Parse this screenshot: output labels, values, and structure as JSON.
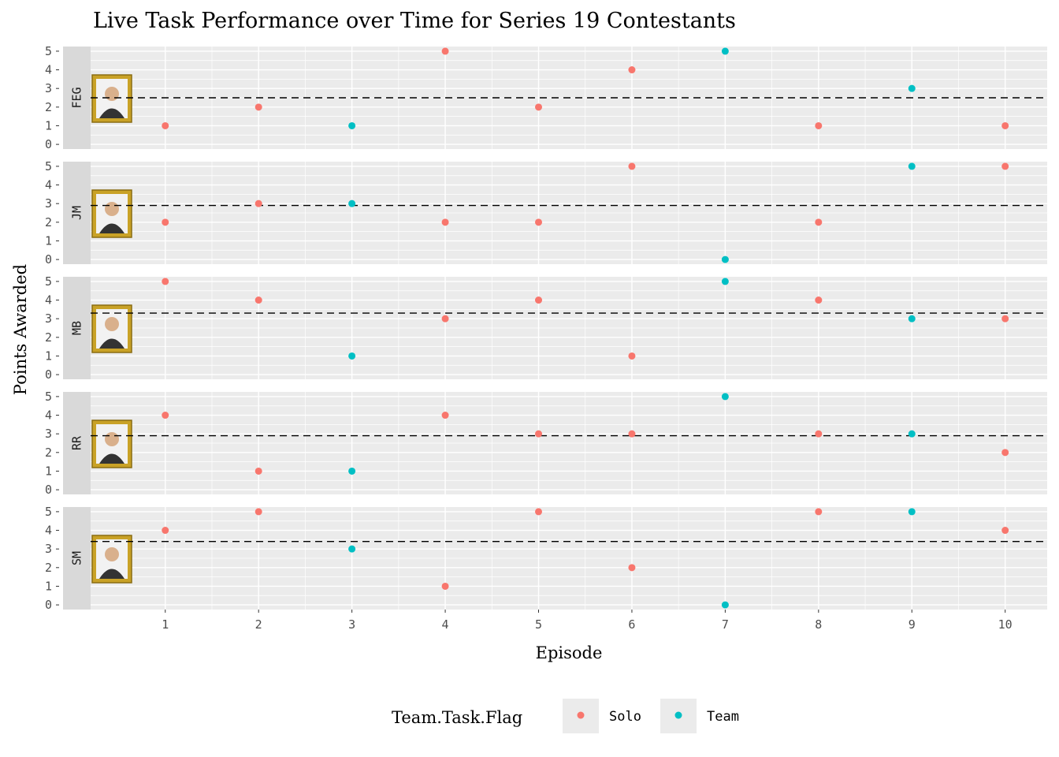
{
  "chart_data": {
    "type": "scatter",
    "title": "Live Task Performance over Time for Series 19 Contestants",
    "xlabel": "Episode",
    "ylabel": "Points Awarded",
    "x_ticks": [
      1,
      2,
      3,
      4,
      5,
      6,
      7,
      8,
      9,
      10
    ],
    "xlim": [
      0.2,
      10.45
    ],
    "y_ticks": [
      0,
      1,
      2,
      3,
      4,
      5
    ],
    "ylim": [
      -0.25,
      5.25
    ],
    "grid": true,
    "legend": {
      "title": "Team.Task.Flag",
      "position": "bottom",
      "entries": [
        {
          "label": "Solo",
          "color": "#F8766D"
        },
        {
          "label": "Team",
          "color": "#00BFC4"
        }
      ]
    },
    "colors": {
      "Solo": "#F8766D",
      "Team": "#00BFC4",
      "panel_bg": "#EBEBEB",
      "strip_bg": "#D9D9D9"
    },
    "facets": [
      {
        "label": "FEG",
        "mean": 2.5,
        "points": [
          {
            "x": 1,
            "y": 1,
            "flag": "Solo"
          },
          {
            "x": 2,
            "y": 2,
            "flag": "Solo"
          },
          {
            "x": 3,
            "y": 1,
            "flag": "Team"
          },
          {
            "x": 4,
            "y": 5,
            "flag": "Solo"
          },
          {
            "x": 5,
            "y": 2,
            "flag": "Solo"
          },
          {
            "x": 6,
            "y": 4,
            "flag": "Solo"
          },
          {
            "x": 7,
            "y": 5,
            "flag": "Team"
          },
          {
            "x": 8,
            "y": 1,
            "flag": "Solo"
          },
          {
            "x": 9,
            "y": 3,
            "flag": "Team"
          },
          {
            "x": 10,
            "y": 1,
            "flag": "Solo"
          }
        ]
      },
      {
        "label": "JM",
        "mean": 2.9,
        "points": [
          {
            "x": 1,
            "y": 2,
            "flag": "Solo"
          },
          {
            "x": 2,
            "y": 3,
            "flag": "Solo"
          },
          {
            "x": 3,
            "y": 3,
            "flag": "Team"
          },
          {
            "x": 4,
            "y": 2,
            "flag": "Solo"
          },
          {
            "x": 5,
            "y": 2,
            "flag": "Solo"
          },
          {
            "x": 6,
            "y": 5,
            "flag": "Solo"
          },
          {
            "x": 7,
            "y": 0,
            "flag": "Team"
          },
          {
            "x": 8,
            "y": 2,
            "flag": "Solo"
          },
          {
            "x": 9,
            "y": 5,
            "flag": "Team"
          },
          {
            "x": 10,
            "y": 5,
            "flag": "Solo"
          }
        ]
      },
      {
        "label": "MB",
        "mean": 3.3,
        "points": [
          {
            "x": 1,
            "y": 5,
            "flag": "Solo"
          },
          {
            "x": 2,
            "y": 4,
            "flag": "Solo"
          },
          {
            "x": 3,
            "y": 1,
            "flag": "Team"
          },
          {
            "x": 4,
            "y": 3,
            "flag": "Solo"
          },
          {
            "x": 5,
            "y": 4,
            "flag": "Solo"
          },
          {
            "x": 6,
            "y": 1,
            "flag": "Solo"
          },
          {
            "x": 7,
            "y": 5,
            "flag": "Team"
          },
          {
            "x": 8,
            "y": 4,
            "flag": "Solo"
          },
          {
            "x": 9,
            "y": 3,
            "flag": "Team"
          },
          {
            "x": 10,
            "y": 3,
            "flag": "Solo"
          }
        ]
      },
      {
        "label": "RR",
        "mean": 2.9,
        "points": [
          {
            "x": 1,
            "y": 4,
            "flag": "Solo"
          },
          {
            "x": 2,
            "y": 1,
            "flag": "Solo"
          },
          {
            "x": 3,
            "y": 1,
            "flag": "Team"
          },
          {
            "x": 4,
            "y": 4,
            "flag": "Solo"
          },
          {
            "x": 5,
            "y": 3,
            "flag": "Solo"
          },
          {
            "x": 6,
            "y": 3,
            "flag": "Solo"
          },
          {
            "x": 7,
            "y": 5,
            "flag": "Team"
          },
          {
            "x": 8,
            "y": 3,
            "flag": "Solo"
          },
          {
            "x": 9,
            "y": 3,
            "flag": "Team"
          },
          {
            "x": 10,
            "y": 2,
            "flag": "Solo"
          }
        ]
      },
      {
        "label": "SM",
        "mean": 3.4,
        "points": [
          {
            "x": 1,
            "y": 4,
            "flag": "Solo"
          },
          {
            "x": 2,
            "y": 5,
            "flag": "Solo"
          },
          {
            "x": 3,
            "y": 3,
            "flag": "Team"
          },
          {
            "x": 4,
            "y": 1,
            "flag": "Solo"
          },
          {
            "x": 5,
            "y": 5,
            "flag": "Solo"
          },
          {
            "x": 6,
            "y": 2,
            "flag": "Solo"
          },
          {
            "x": 7,
            "y": 0,
            "flag": "Team"
          },
          {
            "x": 8,
            "y": 5,
            "flag": "Solo"
          },
          {
            "x": 9,
            "y": 5,
            "flag": "Team"
          },
          {
            "x": 10,
            "y": 4,
            "flag": "Solo"
          }
        ]
      }
    ]
  }
}
